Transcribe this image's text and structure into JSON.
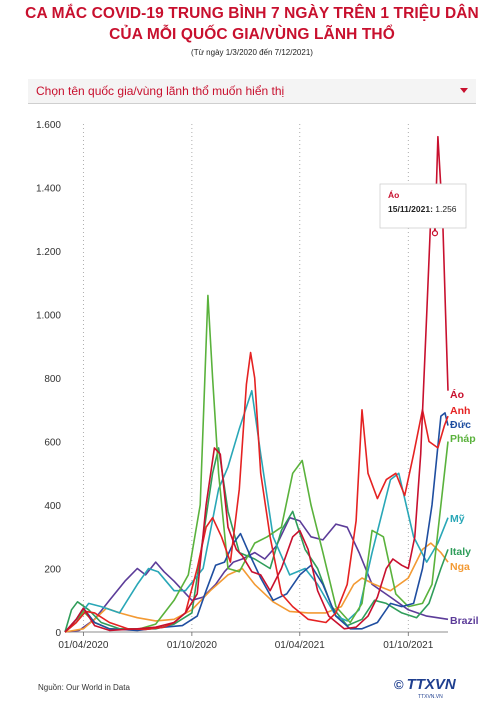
{
  "header": {
    "title_line1": "CA MẮC COVID-19 TRUNG BÌNH 7 NGÀY TRÊN 1 TRIỆU DÂN",
    "title_line2": "CỦA MỖI QUỐC GIA/VÙNG LÃNH THỔ",
    "subtitle": "(Từ ngày 1/3/2020 đến 7/12/2021)"
  },
  "dropdown": {
    "placeholder": "Chọn tên quốc gia/vùng lãnh thổ muốn hiển thị"
  },
  "footer": {
    "source": "Nguồn: Our World in Data",
    "logo_text": "TTXVN",
    "logo_symbol": "©",
    "logo_sub": "TTXVN.VN"
  },
  "chart_data": {
    "type": "line",
    "x_range": [
      "2020-03-01",
      "2021-12-07"
    ],
    "ylim": [
      0,
      1600
    ],
    "y_ticks": [
      0,
      200,
      400,
      600,
      800,
      1000,
      1200,
      1400,
      1600
    ],
    "y_tick_labels": [
      "0",
      "200",
      "400",
      "600",
      "800",
      "1.000",
      "1.200",
      "1.400",
      "1.600"
    ],
    "x_ticks": [
      "2020-04-01",
      "2020-10-01",
      "2021-04-01",
      "2021-10-01"
    ],
    "x_tick_labels": [
      "01/04/2020",
      "01/10/2020",
      "01/04/2021",
      "01/10/2021"
    ],
    "grid": "vertical-dotted",
    "tooltip": {
      "series": "Áo",
      "date_label": "15/11/2021:",
      "value_label": "1.256",
      "x": "2021-11-15",
      "y": 1256
    },
    "series": [
      {
        "name": "Áo",
        "color": "#c8102e",
        "points": [
          [
            "2020-03-01",
            0
          ],
          [
            "2020-03-20",
            40
          ],
          [
            "2020-04-01",
            75
          ],
          [
            "2020-04-20",
            20
          ],
          [
            "2020-05-15",
            5
          ],
          [
            "2020-07-01",
            10
          ],
          [
            "2020-08-01",
            15
          ],
          [
            "2020-09-01",
            30
          ],
          [
            "2020-09-20",
            60
          ],
          [
            "2020-10-10",
            120
          ],
          [
            "2020-10-25",
            400
          ],
          [
            "2020-11-08",
            580
          ],
          [
            "2020-11-18",
            560
          ],
          [
            "2020-12-01",
            330
          ],
          [
            "2020-12-15",
            260
          ],
          [
            "2020-12-25",
            240
          ],
          [
            "2021-01-10",
            190
          ],
          [
            "2021-01-25",
            180
          ],
          [
            "2021-02-10",
            130
          ],
          [
            "2021-03-01",
            200
          ],
          [
            "2021-03-20",
            300
          ],
          [
            "2021-04-01",
            320
          ],
          [
            "2021-04-15",
            260
          ],
          [
            "2021-05-01",
            130
          ],
          [
            "2021-05-20",
            50
          ],
          [
            "2021-06-15",
            10
          ],
          [
            "2021-07-05",
            15
          ],
          [
            "2021-07-25",
            50
          ],
          [
            "2021-08-10",
            110
          ],
          [
            "2021-08-25",
            200
          ],
          [
            "2021-09-05",
            230
          ],
          [
            "2021-09-20",
            210
          ],
          [
            "2021-10-01",
            200
          ],
          [
            "2021-10-12",
            300
          ],
          [
            "2021-10-22",
            560
          ],
          [
            "2021-11-01",
            1000
          ],
          [
            "2021-11-10",
            1400
          ],
          [
            "2021-11-15",
            1256
          ],
          [
            "2021-11-20",
            1560
          ],
          [
            "2021-11-28",
            1300
          ],
          [
            "2021-12-03",
            1000
          ],
          [
            "2021-12-07",
            760
          ]
        ]
      },
      {
        "name": "Anh",
        "color": "#e52222",
        "points": [
          [
            "2020-03-01",
            0
          ],
          [
            "2020-03-20",
            30
          ],
          [
            "2020-04-05",
            65
          ],
          [
            "2020-04-20",
            60
          ],
          [
            "2020-05-15",
            30
          ],
          [
            "2020-06-15",
            10
          ],
          [
            "2020-07-15",
            8
          ],
          [
            "2020-08-15",
            15
          ],
          [
            "2020-09-01",
            30
          ],
          [
            "2020-09-20",
            60
          ],
          [
            "2020-10-10",
            200
          ],
          [
            "2020-10-25",
            330
          ],
          [
            "2020-11-05",
            360
          ],
          [
            "2020-11-20",
            300
          ],
          [
            "2020-12-05",
            220
          ],
          [
            "2020-12-20",
            450
          ],
          [
            "2021-01-01",
            780
          ],
          [
            "2021-01-08",
            880
          ],
          [
            "2021-01-15",
            800
          ],
          [
            "2021-01-25",
            500
          ],
          [
            "2021-02-10",
            300
          ],
          [
            "2021-03-01",
            120
          ],
          [
            "2021-03-20",
            80
          ],
          [
            "2021-04-15",
            40
          ],
          [
            "2021-05-15",
            30
          ],
          [
            "2021-06-01",
            60
          ],
          [
            "2021-06-20",
            150
          ],
          [
            "2021-07-05",
            350
          ],
          [
            "2021-07-15",
            700
          ],
          [
            "2021-07-25",
            500
          ],
          [
            "2021-08-10",
            420
          ],
          [
            "2021-08-25",
            480
          ],
          [
            "2021-09-10",
            500
          ],
          [
            "2021-09-25",
            430
          ],
          [
            "2021-10-10",
            560
          ],
          [
            "2021-10-25",
            700
          ],
          [
            "2021-11-05",
            600
          ],
          [
            "2021-11-20",
            580
          ],
          [
            "2021-12-01",
            650
          ],
          [
            "2021-12-07",
            680
          ]
        ]
      },
      {
        "name": "Đức",
        "color": "#1f4ea0",
        "points": [
          [
            "2020-03-01",
            0
          ],
          [
            "2020-03-20",
            40
          ],
          [
            "2020-04-01",
            75
          ],
          [
            "2020-04-20",
            30
          ],
          [
            "2020-05-15",
            10
          ],
          [
            "2020-07-01",
            5
          ],
          [
            "2020-08-15",
            15
          ],
          [
            "2020-09-15",
            20
          ],
          [
            "2020-10-10",
            50
          ],
          [
            "2020-10-25",
            130
          ],
          [
            "2020-11-10",
            210
          ],
          [
            "2020-11-25",
            220
          ],
          [
            "2020-12-10",
            280
          ],
          [
            "2020-12-22",
            310
          ],
          [
            "2021-01-05",
            250
          ],
          [
            "2021-01-25",
            170
          ],
          [
            "2021-02-15",
            100
          ],
          [
            "2021-03-10",
            120
          ],
          [
            "2021-04-01",
            180
          ],
          [
            "2021-04-20",
            210
          ],
          [
            "2021-05-10",
            150
          ],
          [
            "2021-06-01",
            50
          ],
          [
            "2021-06-25",
            10
          ],
          [
            "2021-07-15",
            10
          ],
          [
            "2021-08-10",
            30
          ],
          [
            "2021-09-01",
            90
          ],
          [
            "2021-09-20",
            80
          ],
          [
            "2021-10-10",
            90
          ],
          [
            "2021-10-25",
            200
          ],
          [
            "2021-11-10",
            400
          ],
          [
            "2021-11-25",
            680
          ],
          [
            "2021-12-02",
            690
          ],
          [
            "2021-12-07",
            650
          ]
        ]
      },
      {
        "name": "Pháp",
        "color": "#5ab23c",
        "points": [
          [
            "2020-03-01",
            0
          ],
          [
            "2020-03-20",
            30
          ],
          [
            "2020-04-01",
            65
          ],
          [
            "2020-04-20",
            30
          ],
          [
            "2020-05-15",
            10
          ],
          [
            "2020-07-01",
            8
          ],
          [
            "2020-08-01",
            25
          ],
          [
            "2020-09-01",
            100
          ],
          [
            "2020-09-25",
            180
          ],
          [
            "2020-10-15",
            400
          ],
          [
            "2020-10-28",
            1060
          ],
          [
            "2020-11-05",
            800
          ],
          [
            "2020-11-15",
            500
          ],
          [
            "2020-12-01",
            200
          ],
          [
            "2020-12-20",
            190
          ],
          [
            "2021-01-15",
            280
          ],
          [
            "2021-02-05",
            300
          ],
          [
            "2021-03-01",
            330
          ],
          [
            "2021-03-20",
            500
          ],
          [
            "2021-04-05",
            540
          ],
          [
            "2021-04-20",
            400
          ],
          [
            "2021-05-10",
            250
          ],
          [
            "2021-06-01",
            80
          ],
          [
            "2021-06-25",
            30
          ],
          [
            "2021-07-15",
            90
          ],
          [
            "2021-08-01",
            320
          ],
          [
            "2021-08-20",
            300
          ],
          [
            "2021-09-10",
            120
          ],
          [
            "2021-10-01",
            80
          ],
          [
            "2021-10-25",
            90
          ],
          [
            "2021-11-10",
            150
          ],
          [
            "2021-11-25",
            400
          ],
          [
            "2021-12-07",
            600
          ]
        ]
      },
      {
        "name": "Mỹ",
        "color": "#29a7b7",
        "points": [
          [
            "2020-03-01",
            0
          ],
          [
            "2020-03-25",
            50
          ],
          [
            "2020-04-10",
            90
          ],
          [
            "2020-05-01",
            80
          ],
          [
            "2020-06-01",
            60
          ],
          [
            "2020-07-01",
            150
          ],
          [
            "2020-07-20",
            200
          ],
          [
            "2020-08-05",
            190
          ],
          [
            "2020-09-01",
            130
          ],
          [
            "2020-09-20",
            130
          ],
          [
            "2020-10-20",
            200
          ],
          [
            "2020-11-15",
            450
          ],
          [
            "2020-12-01",
            520
          ],
          [
            "2020-12-20",
            640
          ],
          [
            "2021-01-10",
            760
          ],
          [
            "2021-01-25",
            560
          ],
          [
            "2021-02-15",
            300
          ],
          [
            "2021-03-15",
            180
          ],
          [
            "2021-04-10",
            200
          ],
          [
            "2021-05-01",
            150
          ],
          [
            "2021-06-01",
            50
          ],
          [
            "2021-06-20",
            35
          ],
          [
            "2021-07-10",
            70
          ],
          [
            "2021-08-01",
            250
          ],
          [
            "2021-09-01",
            480
          ],
          [
            "2021-09-15",
            500
          ],
          [
            "2021-10-10",
            300
          ],
          [
            "2021-11-01",
            220
          ],
          [
            "2021-11-20",
            280
          ],
          [
            "2021-12-07",
            360
          ]
        ]
      },
      {
        "name": "Italy",
        "color": "#2f9d5a",
        "points": [
          [
            "2020-03-01",
            0
          ],
          [
            "2020-03-12",
            70
          ],
          [
            "2020-03-22",
            95
          ],
          [
            "2020-04-10",
            70
          ],
          [
            "2020-05-01",
            30
          ],
          [
            "2020-06-01",
            10
          ],
          [
            "2020-08-01",
            10
          ],
          [
            "2020-09-01",
            25
          ],
          [
            "2020-10-01",
            60
          ],
          [
            "2020-10-20",
            300
          ],
          [
            "2020-11-05",
            500
          ],
          [
            "2020-11-15",
            580
          ],
          [
            "2020-12-01",
            380
          ],
          [
            "2020-12-20",
            250
          ],
          [
            "2021-01-15",
            230
          ],
          [
            "2021-02-10",
            200
          ],
          [
            "2021-03-01",
            320
          ],
          [
            "2021-03-20",
            380
          ],
          [
            "2021-04-10",
            260
          ],
          [
            "2021-05-01",
            200
          ],
          [
            "2021-05-25",
            80
          ],
          [
            "2021-06-20",
            20
          ],
          [
            "2021-07-15",
            40
          ],
          [
            "2021-08-05",
            100
          ],
          [
            "2021-08-25",
            90
          ],
          [
            "2021-09-20",
            60
          ],
          [
            "2021-10-15",
            45
          ],
          [
            "2021-11-05",
            90
          ],
          [
            "2021-11-25",
            200
          ],
          [
            "2021-12-07",
            260
          ]
        ]
      },
      {
        "name": "Nga",
        "color": "#f39a33",
        "points": [
          [
            "2020-03-01",
            0
          ],
          [
            "2020-04-01",
            10
          ],
          [
            "2020-04-20",
            40
          ],
          [
            "2020-05-10",
            75
          ],
          [
            "2020-06-01",
            60
          ],
          [
            "2020-07-01",
            45
          ],
          [
            "2020-08-01",
            35
          ],
          [
            "2020-09-01",
            40
          ],
          [
            "2020-10-01",
            70
          ],
          [
            "2020-11-01",
            130
          ],
          [
            "2020-12-01",
            180
          ],
          [
            "2020-12-25",
            200
          ],
          [
            "2021-01-15",
            150
          ],
          [
            "2021-02-15",
            95
          ],
          [
            "2021-03-15",
            65
          ],
          [
            "2021-04-15",
            60
          ],
          [
            "2021-05-15",
            60
          ],
          [
            "2021-06-10",
            80
          ],
          [
            "2021-07-01",
            150
          ],
          [
            "2021-07-15",
            170
          ],
          [
            "2021-08-05",
            150
          ],
          [
            "2021-09-01",
            130
          ],
          [
            "2021-10-01",
            170
          ],
          [
            "2021-10-25",
            260
          ],
          [
            "2021-11-08",
            280
          ],
          [
            "2021-11-25",
            250
          ],
          [
            "2021-12-07",
            220
          ]
        ]
      },
      {
        "name": "Brazil",
        "color": "#5c3c99",
        "points": [
          [
            "2020-03-01",
            0
          ],
          [
            "2020-03-25",
            5
          ],
          [
            "2020-04-20",
            40
          ],
          [
            "2020-05-15",
            100
          ],
          [
            "2020-06-10",
            160
          ],
          [
            "2020-07-01",
            200
          ],
          [
            "2020-07-15",
            180
          ],
          [
            "2020-08-01",
            220
          ],
          [
            "2020-08-15",
            190
          ],
          [
            "2020-09-01",
            160
          ],
          [
            "2020-10-01",
            100
          ],
          [
            "2020-10-20",
            110
          ],
          [
            "2020-11-10",
            150
          ],
          [
            "2020-11-25",
            190
          ],
          [
            "2020-12-10",
            220
          ],
          [
            "2020-12-25",
            230
          ],
          [
            "2021-01-15",
            250
          ],
          [
            "2021-02-01",
            230
          ],
          [
            "2021-02-20",
            270
          ],
          [
            "2021-03-15",
            360
          ],
          [
            "2021-04-01",
            350
          ],
          [
            "2021-04-20",
            300
          ],
          [
            "2021-05-10",
            290
          ],
          [
            "2021-06-01",
            340
          ],
          [
            "2021-06-20",
            330
          ],
          [
            "2021-07-10",
            250
          ],
          [
            "2021-08-01",
            150
          ],
          [
            "2021-09-01",
            110
          ],
          [
            "2021-10-01",
            70
          ],
          [
            "2021-11-01",
            50
          ],
          [
            "2021-12-07",
            40
          ]
        ]
      }
    ],
    "legend_labels": [
      "Áo",
      "Anh",
      "Đức",
      "Pháp",
      "Mỹ",
      "Italy",
      "Nga",
      "Brazil"
    ]
  }
}
